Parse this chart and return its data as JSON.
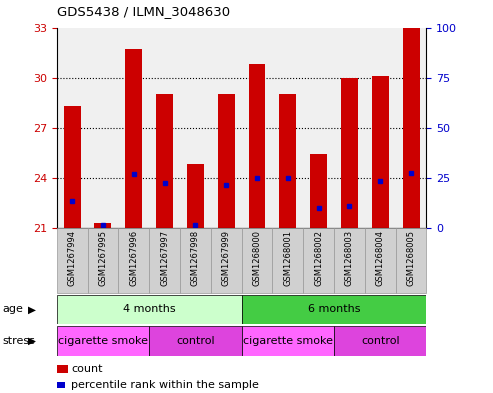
{
  "title": "GDS5438 / ILMN_3048630",
  "samples": [
    "GSM1267994",
    "GSM1267995",
    "GSM1267996",
    "GSM1267997",
    "GSM1267998",
    "GSM1267999",
    "GSM1268000",
    "GSM1268001",
    "GSM1268002",
    "GSM1268003",
    "GSM1268004",
    "GSM1268005"
  ],
  "count_values": [
    28.3,
    21.3,
    31.7,
    29.0,
    24.8,
    29.0,
    30.8,
    29.0,
    25.4,
    30.0,
    30.1,
    33.2
  ],
  "blue_vals": [
    22.6,
    21.2,
    24.2,
    23.7,
    21.2,
    23.6,
    24.0,
    24.0,
    22.2,
    22.3,
    23.8,
    24.3
  ],
  "ylim_left": [
    21,
    33
  ],
  "ylim_right": [
    0,
    100
  ],
  "yticks_left": [
    21,
    24,
    27,
    30,
    33
  ],
  "yticks_right": [
    0,
    25,
    50,
    75,
    100
  ],
  "bar_color": "#cc0000",
  "dot_color": "#0000cc",
  "bar_bottom": 21,
  "age_groups": [
    {
      "label": "4 months",
      "start": 0,
      "end": 6,
      "color": "#ccffcc"
    },
    {
      "label": "6 months",
      "start": 6,
      "end": 12,
      "color": "#44cc44"
    }
  ],
  "stress_groups": [
    {
      "label": "cigarette smoke",
      "start": 0,
      "end": 3,
      "color": "#ff66ff"
    },
    {
      "label": "control",
      "start": 3,
      "end": 6,
      "color": "#dd44dd"
    },
    {
      "label": "cigarette smoke",
      "start": 6,
      "end": 9,
      "color": "#ff66ff"
    },
    {
      "label": "control",
      "start": 9,
      "end": 12,
      "color": "#dd44dd"
    }
  ],
  "tick_label_color_left": "#cc0000",
  "tick_label_color_right": "#0000cc",
  "plot_bg": "#f0f0f0",
  "label_bg": "#d0d0d0",
  "label_edge": "#999999"
}
